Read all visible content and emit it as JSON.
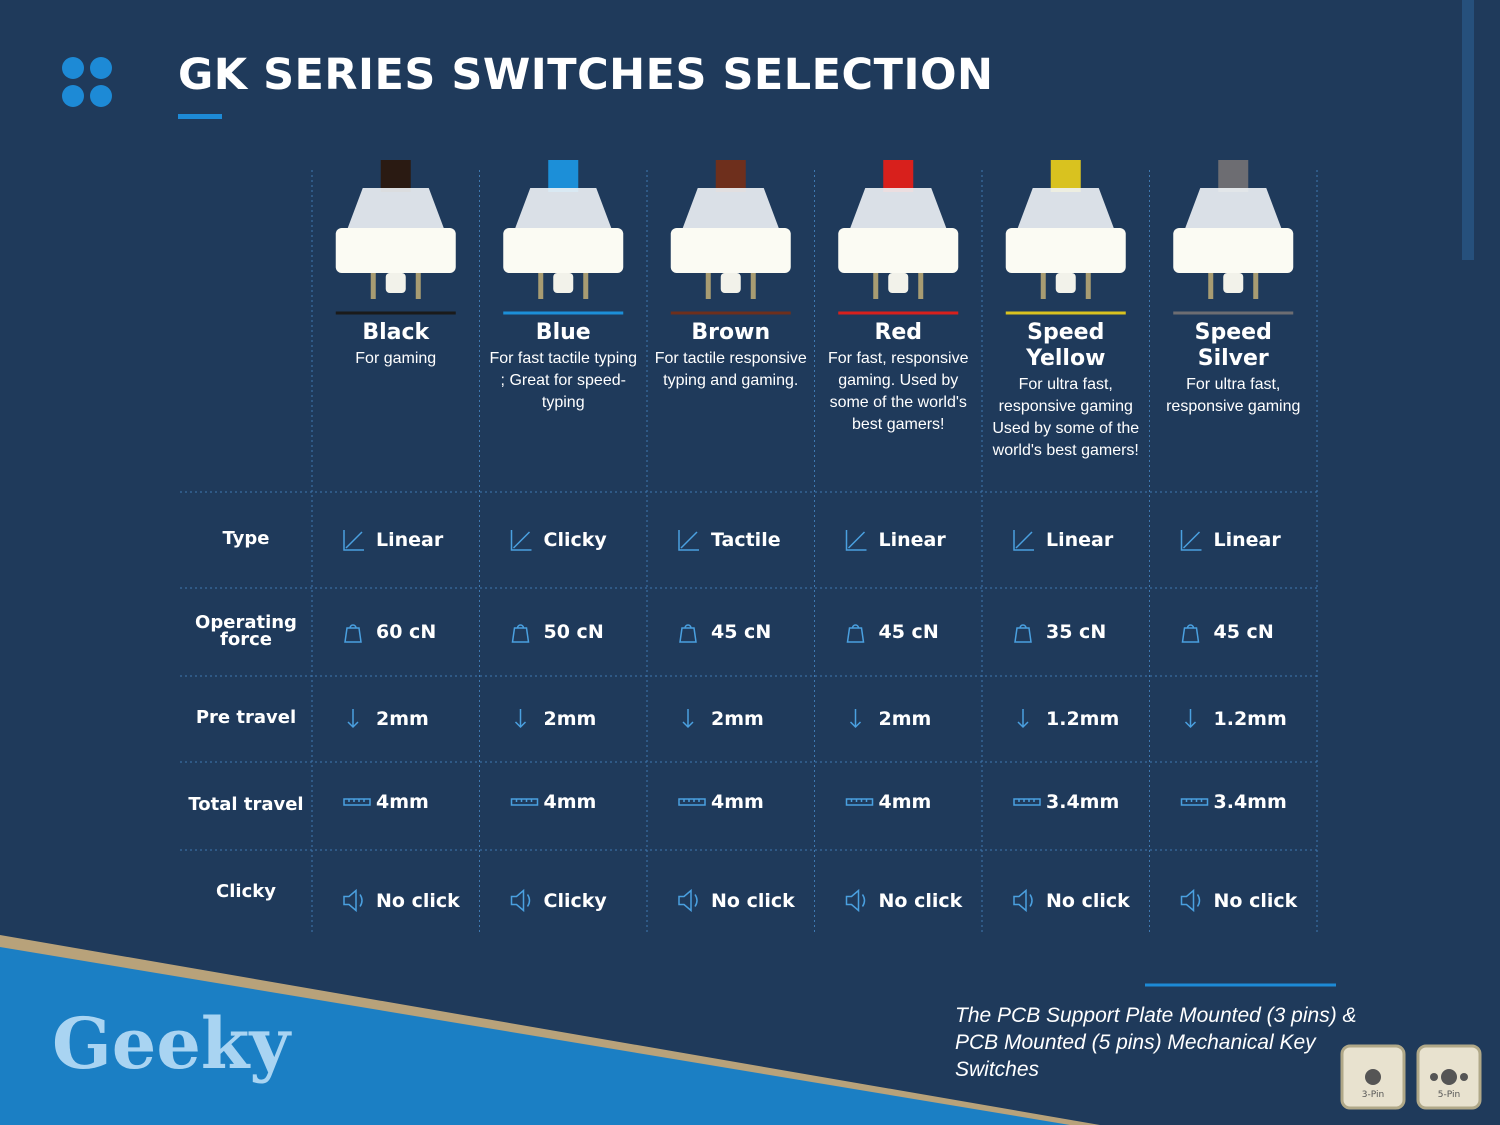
{
  "header": {
    "title": "GK SERIES SWITCHES SELECTION"
  },
  "row_labels": [
    "Type",
    "Operating force",
    "Pre travel",
    "Total travel",
    "Clicky"
  ],
  "switches": [
    {
      "name": "Black",
      "color": "#2a1a12",
      "description": "For gaming",
      "type": "Linear",
      "force": "60 cN",
      "pre_travel": "2mm",
      "total_travel": "4mm",
      "clicky": "No click"
    },
    {
      "name": "Blue",
      "color": "#1c8fd8",
      "description": "For fast tactile typing ; Great for speed-typing",
      "type": "Clicky",
      "force": "50 cN",
      "pre_travel": "2mm",
      "total_travel": "4mm",
      "clicky": "Clicky"
    },
    {
      "name": "Brown",
      "color": "#6e2f1c",
      "description": "For tactile responsive typing and gaming.",
      "type": "Tactile",
      "force": "45 cN",
      "pre_travel": "2mm",
      "total_travel": "4mm",
      "clicky": "No click"
    },
    {
      "name": "Red",
      "color": "#d8201c",
      "description": "For fast, responsive gaming. Used by some of the world's best gamers!",
      "type": "Linear",
      "force": "45 cN",
      "pre_travel": "2mm",
      "total_travel": "4mm",
      "clicky": "No click"
    },
    {
      "name": "Speed Yellow",
      "color": "#d9c21f",
      "description": "For ultra fast, responsive gaming Used by some of the world's best gamers!",
      "type": "Linear",
      "force": "35 cN",
      "pre_travel": "1.2mm",
      "total_travel": "3.4mm",
      "clicky": "No click"
    },
    {
      "name": "Speed Silver",
      "color": "#6d6d72",
      "description": "For ultra fast, responsive gaming",
      "type": "Linear",
      "force": "45 cN",
      "pre_travel": "1.2mm",
      "total_travel": "3.4mm",
      "clicky": "No click"
    }
  ],
  "footer": {
    "brand": "Geeky",
    "caption": "The PCB Support Plate Mounted (3 pins) & PCB Mounted (5 pins) Mechanical Key Switches",
    "pins": [
      "3-Pin",
      "5-Pin"
    ]
  }
}
